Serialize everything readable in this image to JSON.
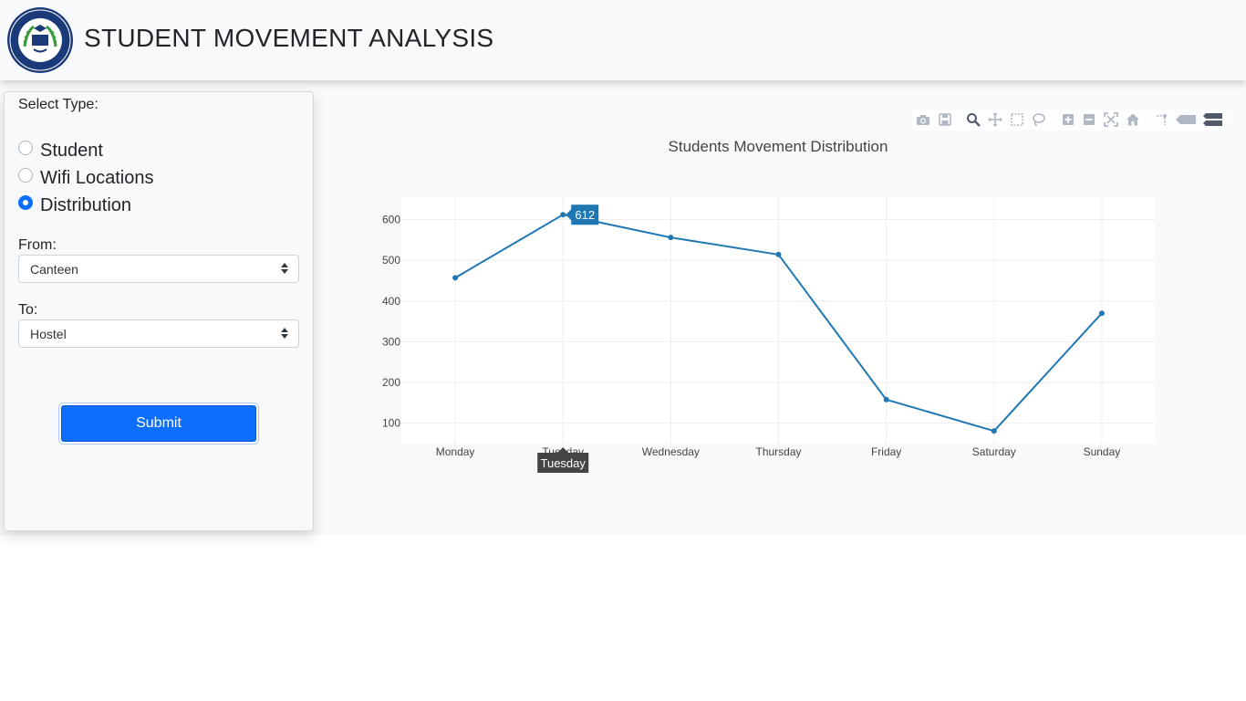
{
  "header": {
    "title": "STUDENT MOVEMENT ANALYSIS"
  },
  "sidebar": {
    "select_type_label": "Select Type:",
    "radios": [
      {
        "label": "Student",
        "checked": false
      },
      {
        "label": "Wifi Locations",
        "checked": false
      },
      {
        "label": "Distribution",
        "checked": true
      }
    ],
    "from_label": "From:",
    "from_value": "Canteen",
    "to_label": "To:",
    "to_value": "Hostel",
    "submit_label": "Submit"
  },
  "modebar": {
    "icons": [
      "camera-icon",
      "save-icon",
      "zoom-icon",
      "pan-icon",
      "box-select-icon",
      "lasso-icon",
      "zoom-in-icon",
      "zoom-out-icon",
      "autoscale-icon",
      "reset-axes-icon",
      "spike-lines-icon",
      "hover-closest-icon",
      "hover-compare-icon"
    ]
  },
  "colors": {
    "accent": "#0d6efd",
    "line": "#1f77b4"
  },
  "chart_data": {
    "type": "line",
    "title": "Students Movement Distribution",
    "categories": [
      "Monday",
      "Tuesday",
      "Wednesday",
      "Thursday",
      "Friday",
      "Saturday",
      "Sunday"
    ],
    "series": [
      {
        "values": [
          457,
          612,
          556,
          514,
          158,
          81,
          370
        ]
      }
    ],
    "ylim": [
      50,
      655
    ],
    "yticks": [
      100,
      200,
      300,
      400,
      500,
      600
    ],
    "grid": true,
    "hover": {
      "category": "Tuesday",
      "value": "612"
    }
  }
}
